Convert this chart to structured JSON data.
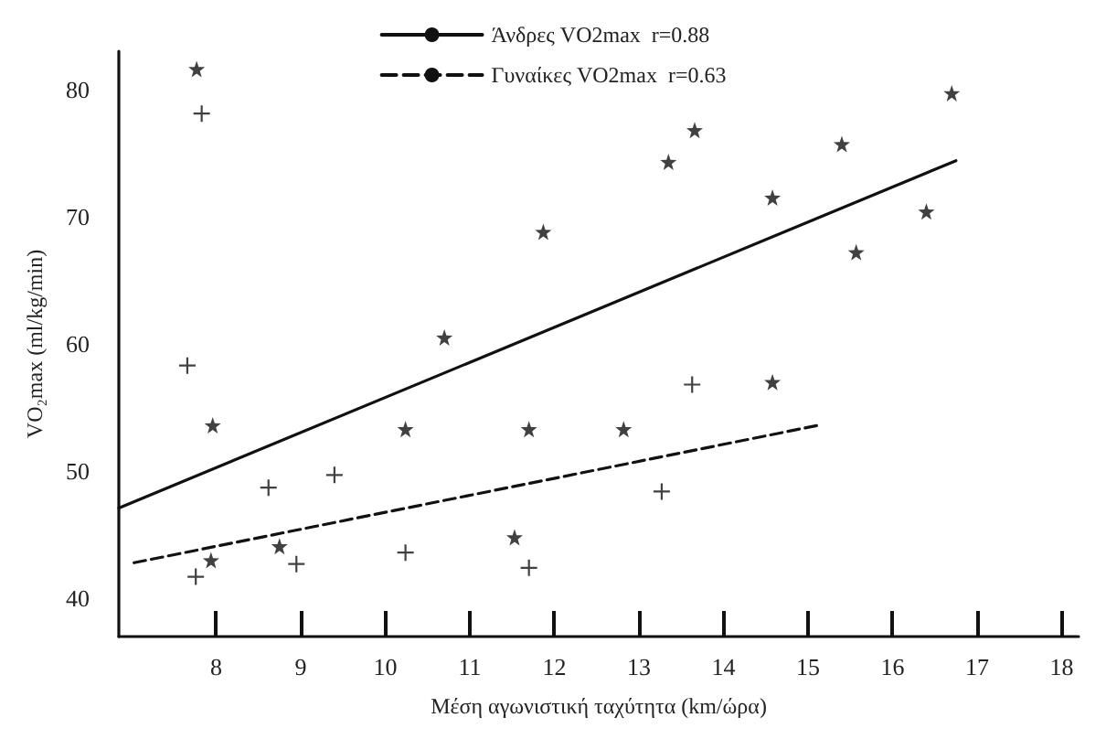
{
  "chart_data": {
    "type": "scatter",
    "xlabel": "Μέση αγωνιστική ταχύτητα (km/ώρα)",
    "ylabel": "VO₂max (ml/kg/min)",
    "xlim": [
      6.85,
      18.2
    ],
    "ylim": [
      37,
      83
    ],
    "xticks": [
      8,
      9,
      10,
      11,
      12,
      13,
      14,
      15,
      16,
      17,
      18
    ],
    "yticks": [
      40,
      50,
      60,
      70,
      80
    ],
    "grid": false,
    "legend": "top",
    "series": [
      {
        "marker": "star",
        "color": "#111111",
        "x": [
          7.77,
          7.96,
          7.94,
          8.75,
          10.24,
          10.7,
          11.53,
          11.7,
          11.87,
          12.82,
          13.35,
          13.66,
          14.58,
          14.58,
          15.4,
          15.57,
          16.4,
          16.7
        ],
        "values": [
          81.6,
          53.6,
          43.0,
          44.1,
          53.3,
          60.5,
          44.8,
          53.3,
          68.8,
          53.3,
          74.3,
          76.8,
          71.5,
          57.0,
          75.7,
          67.2,
          70.4,
          79.7
        ]
      },
      {
        "marker": "cross",
        "color": "#111111",
        "x": [
          7.66,
          7.76,
          7.83,
          8.62,
          8.95,
          9.4,
          10.24,
          11.7,
          13.27,
          13.63
        ],
        "values": [
          58.3,
          41.7,
          78.1,
          48.7,
          42.7,
          49.7,
          43.6,
          42.4,
          48.4,
          56.8
        ]
      },
      {
        "type": "line",
        "name": "Άνδρες VO2max  r=0.88",
        "marker": "none",
        "line_style": "solid",
        "color": "#111111",
        "x": [
          6.85,
          16.75
        ],
        "values": [
          47.1,
          74.4
        ]
      },
      {
        "type": "line",
        "name": "Γυναίκες VO2max  r=0.63",
        "marker": "none",
        "line_style": "dashed",
        "color": "#111111",
        "x": [
          7.03,
          15.12
        ],
        "values": [
          42.8,
          53.6
        ]
      }
    ]
  }
}
